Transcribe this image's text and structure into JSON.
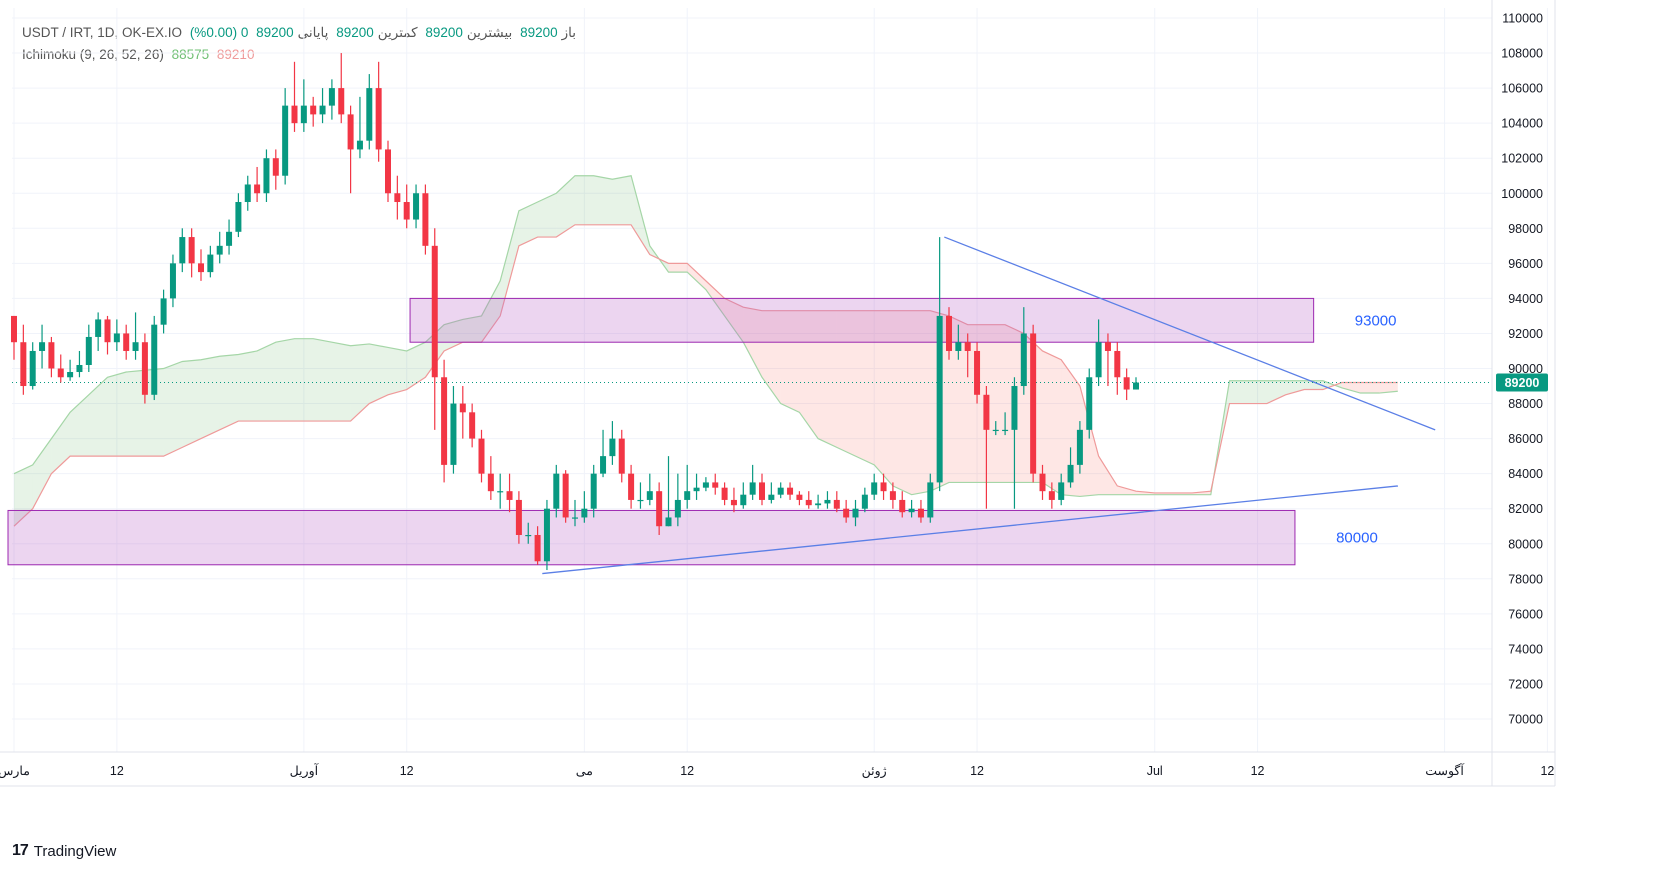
{
  "legend": {
    "symbol": "USDT / IRT, 1D, OK-EX.IO",
    "open_label": "باز",
    "open": "89200",
    "high_label": "بیشترین",
    "high": "89200",
    "low_label": "کمترین",
    "low": "89200",
    "close_label": "پایانی",
    "close": "89200",
    "change": "0 (0.00%)",
    "indicator": "Ichimoku (9, 26, 52, 26)",
    "ind_val1": "88575",
    "ind_val2": "89210"
  },
  "footer": {
    "logo": "17",
    "brand": "TradingView"
  },
  "price_badge": "89200",
  "chart_data": {
    "type": "candlestick",
    "ylim": [
      68500,
      111000
    ],
    "y_ticks": [
      70000,
      72000,
      74000,
      76000,
      78000,
      80000,
      82000,
      84000,
      86000,
      88000,
      90000,
      92000,
      94000,
      96000,
      98000,
      100000,
      102000,
      104000,
      106000,
      108000,
      110000
    ],
    "x_ticks": [
      {
        "day": 0,
        "label": "مارس"
      },
      {
        "day": 11,
        "label": "12"
      },
      {
        "day": 31,
        "label": "آوریل"
      },
      {
        "day": 42,
        "label": "12"
      },
      {
        "day": 61,
        "label": "می"
      },
      {
        "day": 72,
        "label": "12"
      },
      {
        "day": 92,
        "label": "ژوئن"
      },
      {
        "day": 103,
        "label": "12"
      },
      {
        "day": 122,
        "label": "Jul"
      },
      {
        "day": 133,
        "label": "12"
      },
      {
        "day": 153,
        "label": "آگوست"
      },
      {
        "day": 164,
        "label": "12"
      }
    ],
    "x_range_days": [
      0,
      169
    ],
    "candles": [
      [
        0,
        93000,
        91500,
        93000,
        90500
      ],
      [
        1,
        91500,
        89000,
        92500,
        88500
      ],
      [
        2,
        89000,
        91000,
        91500,
        88800
      ],
      [
        3,
        91000,
        91500,
        92500,
        90000
      ],
      [
        4,
        91500,
        90000,
        91800,
        89500
      ],
      [
        5,
        90000,
        89500,
        90800,
        89200
      ],
      [
        6,
        89500,
        89800,
        90500,
        89300
      ],
      [
        7,
        89800,
        90200,
        91000,
        89500
      ],
      [
        8,
        90200,
        91800,
        92500,
        89800
      ],
      [
        9,
        91800,
        92800,
        93200,
        91000
      ],
      [
        10,
        92800,
        91500,
        93000,
        90800
      ],
      [
        11,
        91500,
        92000,
        92800,
        91000
      ],
      [
        12,
        92000,
        91000,
        92500,
        90500
      ],
      [
        13,
        91000,
        91500,
        93200,
        90500
      ],
      [
        14,
        91500,
        88500,
        92000,
        88000
      ],
      [
        15,
        88500,
        92500,
        93000,
        88200
      ],
      [
        16,
        92500,
        94000,
        94500,
        92000
      ],
      [
        17,
        94000,
        96000,
        96500,
        93500
      ],
      [
        18,
        96000,
        97500,
        98000,
        95500
      ],
      [
        19,
        97500,
        96000,
        98000,
        95200
      ],
      [
        20,
        96000,
        95500,
        96800,
        95000
      ],
      [
        21,
        95500,
        96500,
        97000,
        95200
      ],
      [
        22,
        96500,
        97000,
        97800,
        96000
      ],
      [
        23,
        97000,
        97800,
        98500,
        96500
      ],
      [
        24,
        97800,
        99500,
        100000,
        97500
      ],
      [
        25,
        99500,
        100500,
        101000,
        99000
      ],
      [
        26,
        100500,
        100000,
        101500,
        99500
      ],
      [
        27,
        100000,
        102000,
        102500,
        99500
      ],
      [
        28,
        102000,
        101000,
        102500,
        100200
      ],
      [
        29,
        101000,
        105000,
        106000,
        100500
      ],
      [
        30,
        105000,
        104000,
        107500,
        103500
      ],
      [
        31,
        104000,
        105000,
        106500,
        103500
      ],
      [
        32,
        105000,
        104500,
        105500,
        103800
      ],
      [
        33,
        104500,
        105000,
        106000,
        104000
      ],
      [
        34,
        105000,
        106000,
        106500,
        104200
      ],
      [
        35,
        106000,
        104500,
        108000,
        104000
      ],
      [
        36,
        104500,
        102500,
        105000,
        100000
      ],
      [
        37,
        102500,
        103000,
        105500,
        102000
      ],
      [
        38,
        103000,
        106000,
        106800,
        102500
      ],
      [
        39,
        106000,
        102500,
        107500,
        101800
      ],
      [
        40,
        102500,
        100000,
        103000,
        99500
      ],
      [
        41,
        100000,
        99500,
        101000,
        98500
      ],
      [
        42,
        99500,
        98500,
        100500,
        98000
      ],
      [
        43,
        98500,
        100000,
        100500,
        98000
      ],
      [
        44,
        100000,
        97000,
        100500,
        96500
      ],
      [
        45,
        97000,
        89500,
        98000,
        86500
      ],
      [
        46,
        89500,
        84500,
        90500,
        83500
      ],
      [
        47,
        84500,
        88000,
        89000,
        84000
      ],
      [
        48,
        88000,
        87500,
        89000,
        86000
      ],
      [
        49,
        87500,
        86000,
        88000,
        85500
      ],
      [
        50,
        86000,
        84000,
        86500,
        83500
      ],
      [
        51,
        84000,
        83000,
        85000,
        82500
      ],
      [
        52,
        83000,
        83000,
        84000,
        82000
      ],
      [
        53,
        83000,
        82500,
        84000,
        81800
      ],
      [
        54,
        82500,
        80500,
        83000,
        80000
      ],
      [
        55,
        80500,
        80500,
        81200,
        80000
      ],
      [
        56,
        80500,
        79000,
        81000,
        78800
      ],
      [
        57,
        79000,
        82000,
        82500,
        78500
      ],
      [
        58,
        82000,
        84000,
        84500,
        81500
      ],
      [
        59,
        84000,
        81500,
        84200,
        81200
      ],
      [
        60,
        81500,
        81500,
        82500,
        81000
      ],
      [
        61,
        81500,
        82000,
        83000,
        81200
      ],
      [
        62,
        82000,
        84000,
        84500,
        81500
      ],
      [
        63,
        84000,
        85000,
        86500,
        83800
      ],
      [
        64,
        85000,
        86000,
        87000,
        84500
      ],
      [
        65,
        86000,
        84000,
        86500,
        83500
      ],
      [
        66,
        84000,
        82500,
        84500,
        82000
      ],
      [
        67,
        82500,
        82500,
        83500,
        82000
      ],
      [
        68,
        82500,
        83000,
        84000,
        82200
      ],
      [
        69,
        83000,
        81000,
        83500,
        80500
      ],
      [
        70,
        81000,
        81500,
        85000,
        81000
      ],
      [
        71,
        81500,
        82500,
        84000,
        81000
      ],
      [
        72,
        82500,
        83000,
        84500,
        82000
      ],
      [
        73,
        83000,
        83200,
        84000,
        82500
      ],
      [
        74,
        83200,
        83500,
        83800,
        83000
      ],
      [
        75,
        83500,
        83200,
        84000,
        82800
      ],
      [
        76,
        83200,
        82500,
        83500,
        82200
      ],
      [
        77,
        82500,
        82200,
        83200,
        81800
      ],
      [
        78,
        82200,
        82800,
        83500,
        82000
      ],
      [
        79,
        82800,
        83500,
        84500,
        82500
      ],
      [
        80,
        83500,
        82500,
        84000,
        82200
      ],
      [
        81,
        82500,
        82800,
        83500,
        82300
      ],
      [
        82,
        82800,
        83200,
        83500,
        82600
      ],
      [
        83,
        83200,
        82800,
        83500,
        82500
      ],
      [
        84,
        82800,
        82500,
        83000,
        82200
      ],
      [
        85,
        82500,
        82200,
        83000,
        82000
      ],
      [
        86,
        82200,
        82300,
        82800,
        82000
      ],
      [
        87,
        82300,
        82500,
        83000,
        82000
      ],
      [
        88,
        82500,
        82000,
        83000,
        81800
      ],
      [
        89,
        82000,
        81500,
        82500,
        81200
      ],
      [
        90,
        81500,
        82000,
        82500,
        81000
      ],
      [
        91,
        82000,
        82800,
        83200,
        81800
      ],
      [
        92,
        82800,
        83500,
        84000,
        82500
      ],
      [
        93,
        83500,
        83000,
        84000,
        82500
      ],
      [
        94,
        83000,
        82500,
        83500,
        82000
      ],
      [
        95,
        82500,
        81800,
        83000,
        81500
      ],
      [
        96,
        81800,
        82000,
        82500,
        81500
      ],
      [
        97,
        82000,
        81500,
        82500,
        81200
      ],
      [
        98,
        81500,
        83500,
        84000,
        81200
      ],
      [
        99,
        83500,
        93000,
        97500,
        83000
      ],
      [
        100,
        93000,
        91000,
        93500,
        90500
      ],
      [
        101,
        91000,
        91500,
        92500,
        90500
      ],
      [
        102,
        91500,
        91000,
        92000,
        89500
      ],
      [
        103,
        91000,
        88500,
        91500,
        88000
      ],
      [
        104,
        88500,
        86500,
        89000,
        82000
      ],
      [
        105,
        86500,
        86500,
        87000,
        86200
      ],
      [
        106,
        86500,
        86500,
        87500,
        86200
      ],
      [
        107,
        86500,
        89000,
        89500,
        82000
      ],
      [
        108,
        89000,
        92000,
        93500,
        88500
      ],
      [
        109,
        92000,
        84000,
        92500,
        83500
      ],
      [
        110,
        84000,
        83000,
        84500,
        82500
      ],
      [
        111,
        83000,
        82500,
        83500,
        82000
      ],
      [
        112,
        82500,
        83500,
        84000,
        82200
      ],
      [
        113,
        83500,
        84500,
        85500,
        83200
      ],
      [
        114,
        84500,
        86500,
        87000,
        84000
      ],
      [
        115,
        86500,
        89500,
        90000,
        86000
      ],
      [
        116,
        89500,
        91500,
        92800,
        89000
      ],
      [
        117,
        91500,
        91000,
        92000,
        89000
      ],
      [
        118,
        91000,
        89500,
        91500,
        88500
      ],
      [
        119,
        89500,
        88800,
        90000,
        88200
      ],
      [
        120,
        88800,
        89200,
        89500,
        88800
      ]
    ],
    "ichimoku_line_a": [
      [
        0,
        84000
      ],
      [
        2,
        84500
      ],
      [
        4,
        86000
      ],
      [
        6,
        87500
      ],
      [
        8,
        88500
      ],
      [
        10,
        89500
      ],
      [
        12,
        89800
      ],
      [
        14,
        89900
      ],
      [
        16,
        90000
      ],
      [
        18,
        90400
      ],
      [
        20,
        90500
      ],
      [
        22,
        90700
      ],
      [
        24,
        90800
      ],
      [
        26,
        91000
      ],
      [
        28,
        91500
      ],
      [
        30,
        91700
      ],
      [
        32,
        91700
      ],
      [
        34,
        91500
      ],
      [
        36,
        91300
      ],
      [
        38,
        91400
      ],
      [
        40,
        91200
      ],
      [
        42,
        91000
      ],
      [
        44,
        91500
      ],
      [
        46,
        92500
      ],
      [
        48,
        92800
      ],
      [
        50,
        93000
      ],
      [
        52,
        95000
      ],
      [
        54,
        99000
      ],
      [
        56,
        99500
      ],
      [
        58,
        100000
      ],
      [
        60,
        101000
      ],
      [
        62,
        101000
      ],
      [
        64,
        100800
      ],
      [
        66,
        101000
      ],
      [
        68,
        97000
      ],
      [
        70,
        95500
      ],
      [
        72,
        95500
      ],
      [
        74,
        94500
      ],
      [
        76,
        93000
      ],
      [
        78,
        91500
      ],
      [
        80,
        89500
      ],
      [
        82,
        88000
      ],
      [
        84,
        87500
      ],
      [
        86,
        86000
      ],
      [
        88,
        85500
      ],
      [
        90,
        85000
      ],
      [
        92,
        84500
      ],
      [
        94,
        83300
      ],
      [
        96,
        82800
      ],
      [
        98,
        83000
      ],
      [
        100,
        83500
      ],
      [
        102,
        83500
      ],
      [
        104,
        83500
      ],
      [
        106,
        83500
      ],
      [
        108,
        83500
      ],
      [
        110,
        83500
      ],
      [
        112,
        82800
      ],
      [
        114,
        82700
      ],
      [
        116,
        82800
      ],
      [
        118,
        82800
      ],
      [
        120,
        82800
      ],
      [
        122,
        82800
      ],
      [
        124,
        82800
      ],
      [
        126,
        82800
      ],
      [
        128,
        82800
      ],
      [
        130,
        89300
      ],
      [
        132,
        89300
      ],
      [
        134,
        89300
      ],
      [
        136,
        89300
      ],
      [
        138,
        89300
      ],
      [
        140,
        89300
      ],
      [
        142,
        88900
      ],
      [
        144,
        88600
      ],
      [
        146,
        88600
      ],
      [
        148,
        88700
      ]
    ],
    "ichimoku_line_b": [
      [
        0,
        81000
      ],
      [
        2,
        82000
      ],
      [
        4,
        84000
      ],
      [
        6,
        85000
      ],
      [
        8,
        85000
      ],
      [
        10,
        85000
      ],
      [
        12,
        85000
      ],
      [
        14,
        85000
      ],
      [
        16,
        85000
      ],
      [
        18,
        85500
      ],
      [
        20,
        86000
      ],
      [
        22,
        86500
      ],
      [
        24,
        87000
      ],
      [
        26,
        87000
      ],
      [
        28,
        87000
      ],
      [
        30,
        87000
      ],
      [
        32,
        87000
      ],
      [
        34,
        87000
      ],
      [
        36,
        87000
      ],
      [
        38,
        88000
      ],
      [
        40,
        88500
      ],
      [
        42,
        88800
      ],
      [
        44,
        89500
      ],
      [
        46,
        91000
      ],
      [
        48,
        91500
      ],
      [
        50,
        91500
      ],
      [
        52,
        93000
      ],
      [
        54,
        97000
      ],
      [
        56,
        97500
      ],
      [
        58,
        97500
      ],
      [
        60,
        98200
      ],
      [
        62,
        98200
      ],
      [
        64,
        98200
      ],
      [
        66,
        98200
      ],
      [
        68,
        96500
      ],
      [
        70,
        96000
      ],
      [
        72,
        96000
      ],
      [
        74,
        95000
      ],
      [
        76,
        94000
      ],
      [
        78,
        93500
      ],
      [
        80,
        93300
      ],
      [
        82,
        93300
      ],
      [
        84,
        93300
      ],
      [
        86,
        93300
      ],
      [
        88,
        93300
      ],
      [
        90,
        93300
      ],
      [
        92,
        93300
      ],
      [
        94,
        93300
      ],
      [
        96,
        93300
      ],
      [
        98,
        93300
      ],
      [
        100,
        93000
      ],
      [
        102,
        92500
      ],
      [
        104,
        92500
      ],
      [
        106,
        92500
      ],
      [
        108,
        92000
      ],
      [
        110,
        91000
      ],
      [
        112,
        90500
      ],
      [
        114,
        89000
      ],
      [
        116,
        85000
      ],
      [
        118,
        83300
      ],
      [
        120,
        83000
      ],
      [
        122,
        82900
      ],
      [
        124,
        82900
      ],
      [
        126,
        82900
      ],
      [
        128,
        83000
      ],
      [
        130,
        88000
      ],
      [
        132,
        88000
      ],
      [
        134,
        88000
      ],
      [
        136,
        88500
      ],
      [
        138,
        88800
      ],
      [
        140,
        88800
      ],
      [
        142,
        89200
      ],
      [
        144,
        89200
      ],
      [
        146,
        89200
      ],
      [
        148,
        89200
      ]
    ],
    "zones": [
      {
        "from_day": 43,
        "to_day": 139,
        "y_low": 91500,
        "y_high": 94000,
        "label": "93000"
      },
      {
        "from_day": 0,
        "to_day": 137,
        "y_low": 78800,
        "y_high": 81900,
        "label": "80000"
      }
    ],
    "trendlines": [
      {
        "x1": 99.5,
        "y1": 97500,
        "x2": 152,
        "y2": 86500
      },
      {
        "x1": 56.5,
        "y1": 78300,
        "x2": 148,
        "y2": 83300
      }
    ],
    "last_price": 89200,
    "colors": {
      "up": "#089981",
      "down": "#f23645",
      "zone": "#e1bee7",
      "zone_border": "#9c27b0",
      "trend": "#5b7fe6",
      "cloud_green": "#a5d6a7",
      "cloud_red": "#ef9a9a",
      "label": "#2962ff",
      "badge": "#089981",
      "grid": "#f0f3fa"
    }
  }
}
